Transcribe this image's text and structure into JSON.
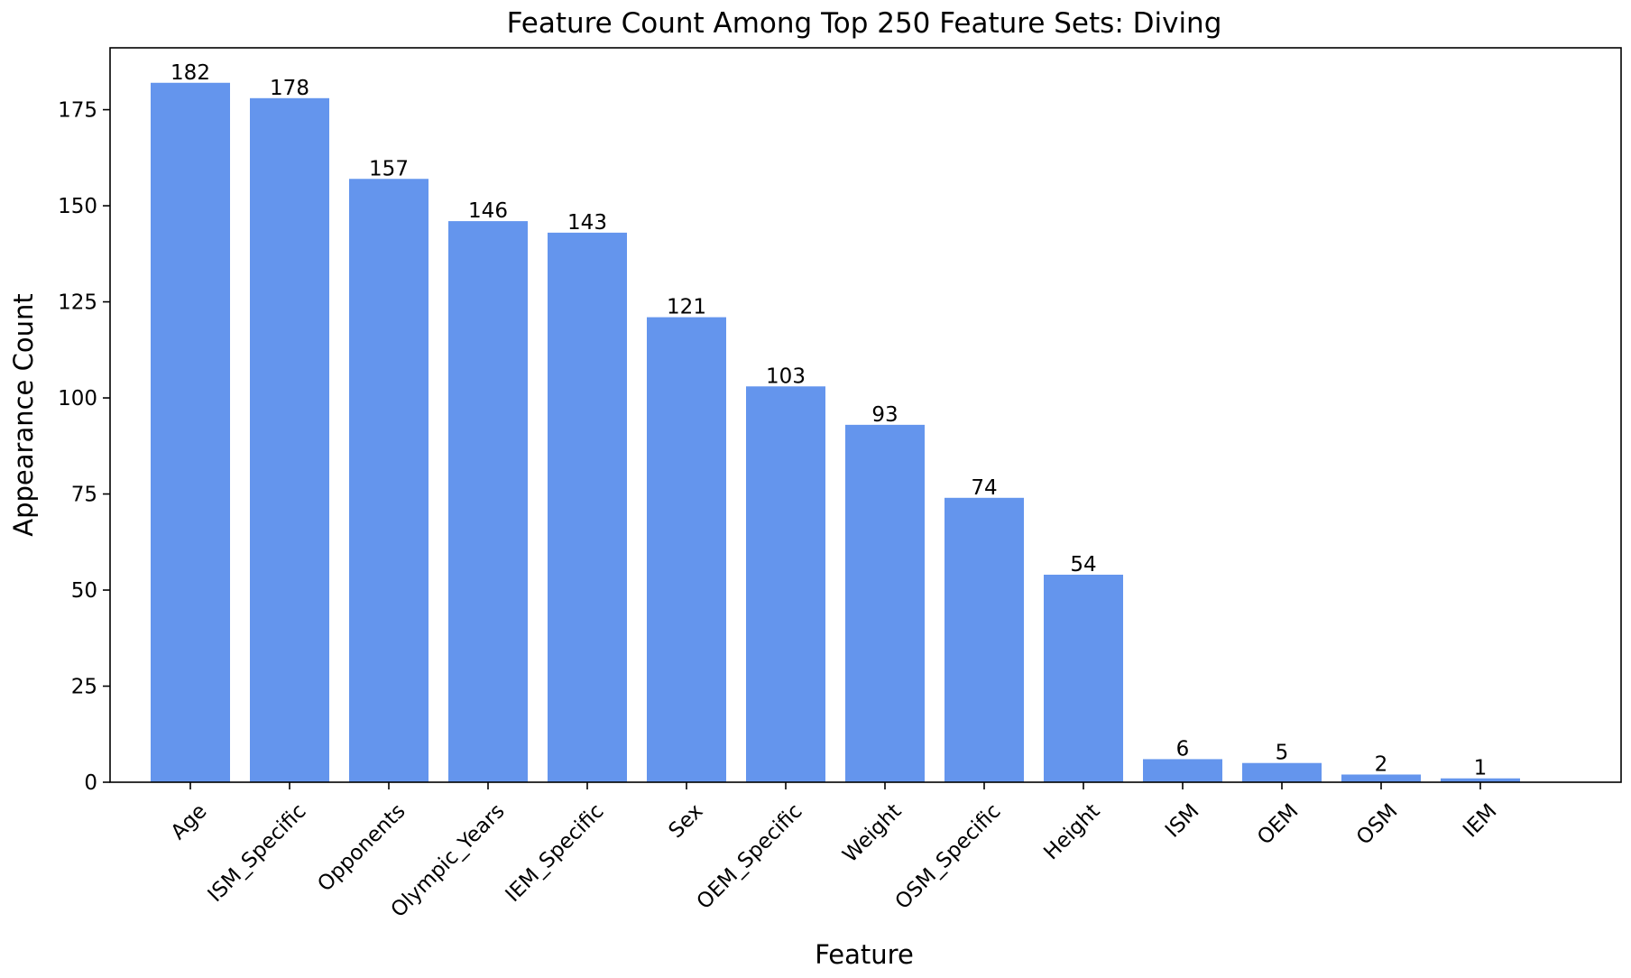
{
  "chart_data": {
    "type": "bar",
    "title": "Feature Count Among Top 250 Feature Sets: Diving",
    "xlabel": "Feature",
    "ylabel": "Appearance Count",
    "categories": [
      "Age",
      "ISM_Specific",
      "Opponents",
      "Olympic_Years",
      "IEM_Specific",
      "Sex",
      "OEM_Specific",
      "Weight",
      "OSM_Specific",
      "Height",
      "ISM",
      "OEM",
      "OSM",
      "IEM"
    ],
    "values": [
      182,
      178,
      157,
      146,
      143,
      121,
      103,
      93,
      74,
      54,
      6,
      5,
      2,
      1
    ],
    "value_labels": [
      "182",
      "178",
      "157",
      "146",
      "143",
      "121",
      "103",
      "93",
      "74",
      "54",
      "6",
      "5",
      "2",
      "1"
    ],
    "ylim": [
      0,
      191.1
    ],
    "yticks": [
      0,
      25,
      50,
      75,
      100,
      125,
      150,
      175
    ],
    "ytick_labels": [
      "0",
      "25",
      "50",
      "75",
      "100",
      "125",
      "150",
      "175"
    ],
    "bar_color": "#6495ed",
    "grid": false,
    "legend": "none"
  }
}
